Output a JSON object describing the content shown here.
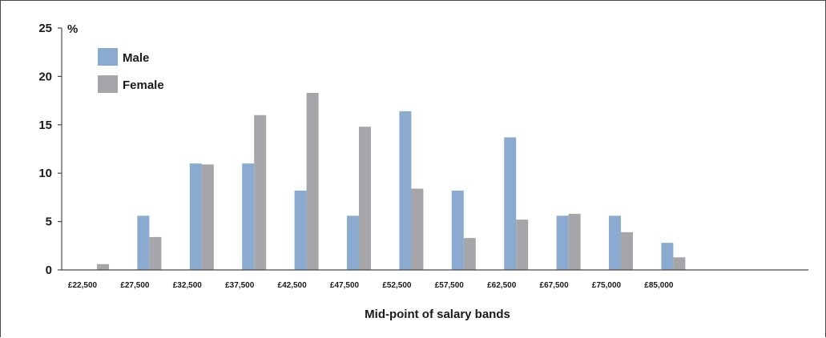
{
  "chart_data": {
    "type": "bar",
    "categories": [
      "£22,500",
      "£27,500",
      "£32,500",
      "£37,500",
      "£42,500",
      "£47,500",
      "£52,500",
      "£57,500",
      "£62,500",
      "£67,500",
      "£75,000",
      "£85,000"
    ],
    "series": [
      {
        "name": "Male",
        "color": "#8aabcf",
        "values": [
          0,
          5.6,
          11.0,
          11.0,
          8.2,
          5.6,
          16.4,
          8.2,
          13.7,
          5.6,
          5.6,
          2.8
        ]
      },
      {
        "name": "Female",
        "color": "#a6a6aa",
        "values": [
          0.6,
          3.4,
          10.9,
          16.0,
          18.3,
          14.8,
          8.4,
          3.3,
          5.2,
          5.8,
          3.9,
          1.3
        ]
      }
    ],
    "title": "",
    "xlabel": "Mid-point of salary bands",
    "ylabel": "%",
    "ylim": [
      0,
      25
    ],
    "yticks": [
      0,
      5,
      10,
      15,
      20,
      25
    ],
    "grid": false,
    "legend": "top-left"
  }
}
